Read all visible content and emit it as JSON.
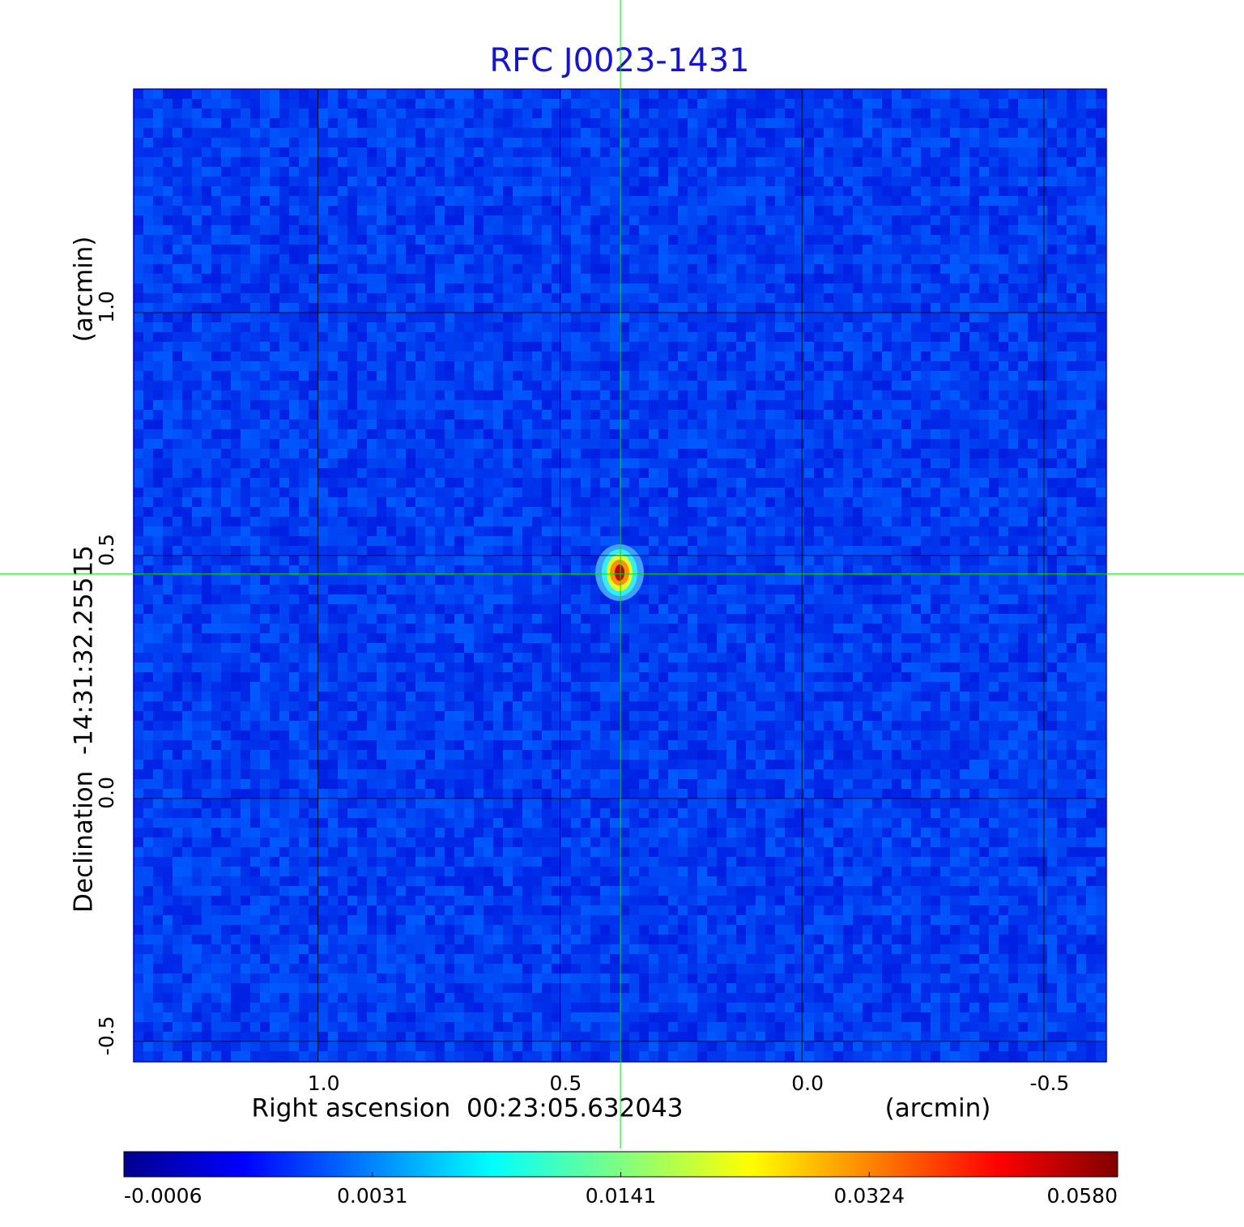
{
  "chart_data": {
    "type": "image",
    "title": "RFC J0023-1431",
    "xlabel": "Right ascension  00:23:05.632043",
    "xunit": "(arcmin)",
    "ylabel": "Declination  -14:31:32.25515",
    "yunit": "(arcmin)",
    "xlim": [
      1.381,
      -0.629
    ],
    "ylim": [
      -0.542,
      1.46
    ],
    "xticks": [
      {
        "value": 1,
        "label": "1.0"
      },
      0.5,
      {
        "value": 0,
        "label": "0.0"
      },
      -0.5
    ],
    "yticks": [
      -0.5,
      {
        "value": 0,
        "label": "0.0"
      },
      0.5,
      {
        "value": 1,
        "label": "1.0"
      }
    ],
    "grid": true,
    "crosshair": {
      "x": 0.375,
      "y": 0.462,
      "color": "#00e000"
    },
    "colormap": "jet",
    "colorbar_ticks": [
      -0.0006,
      0.0031,
      0.0141,
      0.0324,
      {
        "value": 0.058,
        "label": "0.0580"
      }
    ]
  }
}
